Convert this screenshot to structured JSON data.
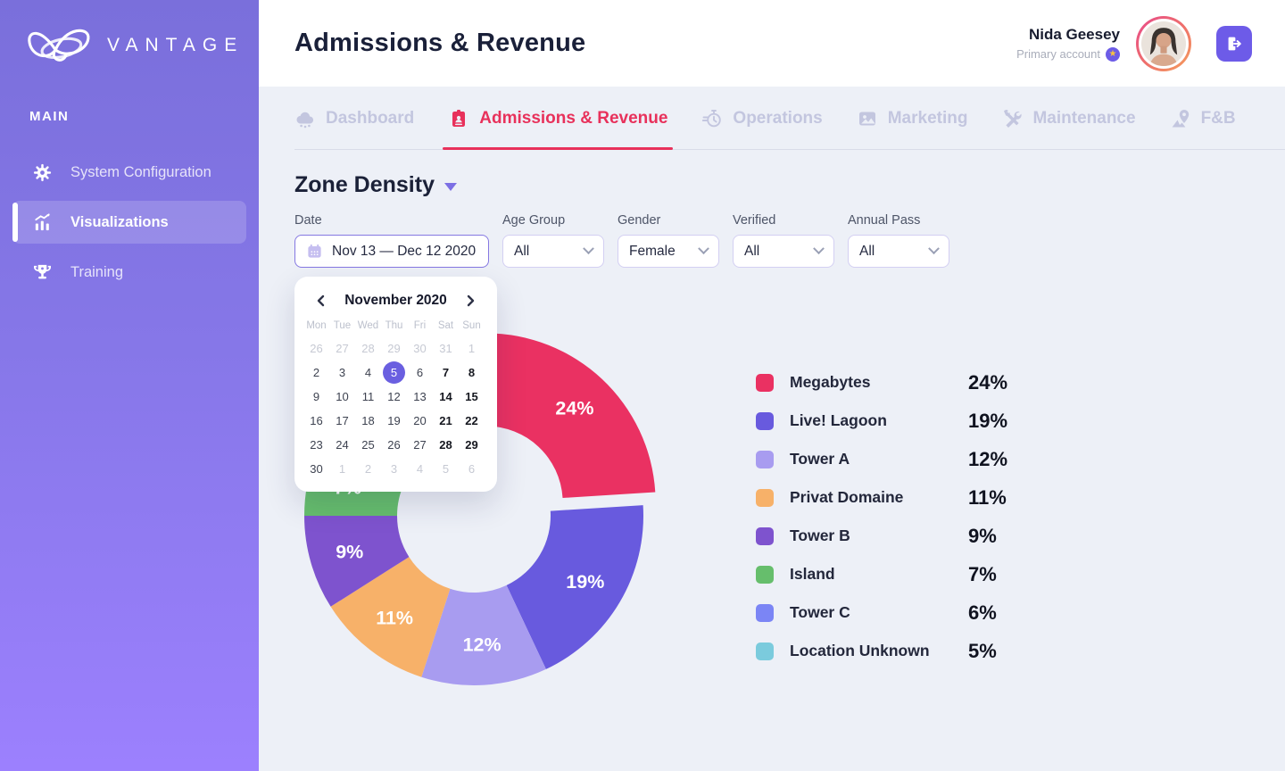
{
  "brand": {
    "name": "VANTAGE",
    "logo_icon": "vantage-logo"
  },
  "sidebar": {
    "section_label": "MAIN",
    "items": [
      {
        "label": "System Configuration",
        "icon": "gear",
        "active": false
      },
      {
        "label": "Visualizations",
        "icon": "bar-chart",
        "active": true
      },
      {
        "label": "Training",
        "icon": "trophy",
        "active": false
      }
    ]
  },
  "header": {
    "title": "Admissions & Revenue",
    "user": {
      "name": "Nida Geesey",
      "subtitle": "Primary account",
      "badge_icon": "star"
    },
    "logout_icon": "logout"
  },
  "tabs": [
    {
      "label": "Dashboard",
      "icon": "cloud",
      "active": false
    },
    {
      "label": "Admissions & Revenue",
      "icon": "ticket",
      "active": true
    },
    {
      "label": "Operations",
      "icon": "timer",
      "active": false
    },
    {
      "label": "Marketing",
      "icon": "image",
      "active": false
    },
    {
      "label": "Maintenance",
      "icon": "tools",
      "active": false
    },
    {
      "label": "F&B",
      "icon": "map-pin",
      "active": false
    }
  ],
  "section": {
    "title": "Zone Density",
    "caret_icon": "caret-down"
  },
  "filters": [
    {
      "label": "Date",
      "value": "Nov 13 — Dec 12 2020",
      "type": "date",
      "icon": "calendar"
    },
    {
      "label": "Age Group",
      "value": "All",
      "type": "select"
    },
    {
      "label": "Gender",
      "value": "Female",
      "type": "select"
    },
    {
      "label": "Verified",
      "value": "All",
      "type": "select"
    },
    {
      "label": "Annual Pass",
      "value": "All",
      "type": "select"
    }
  ],
  "calendar": {
    "month_label": "November 2020",
    "prev_icon": "chevron-left",
    "next_icon": "chevron-right",
    "selected_day": 5,
    "weekdays": [
      "Mon",
      "Tue",
      "Wed",
      "Thu",
      "Fri",
      "Sat",
      "Sun"
    ],
    "days": [
      {
        "n": 26,
        "k": "m"
      },
      {
        "n": 27,
        "k": "m"
      },
      {
        "n": 28,
        "k": "m"
      },
      {
        "n": 29,
        "k": "m"
      },
      {
        "n": 30,
        "k": "m"
      },
      {
        "n": 31,
        "k": "m"
      },
      {
        "n": 1,
        "k": "m"
      },
      {
        "n": 2,
        "k": "d"
      },
      {
        "n": 3,
        "k": "d"
      },
      {
        "n": 4,
        "k": "d"
      },
      {
        "n": 5,
        "k": "s"
      },
      {
        "n": 6,
        "k": "d"
      },
      {
        "n": 7,
        "k": "w"
      },
      {
        "n": 8,
        "k": "w"
      },
      {
        "n": 9,
        "k": "d"
      },
      {
        "n": 10,
        "k": "d"
      },
      {
        "n": 11,
        "k": "d"
      },
      {
        "n": 12,
        "k": "d"
      },
      {
        "n": 13,
        "k": "d"
      },
      {
        "n": 14,
        "k": "w"
      },
      {
        "n": 15,
        "k": "w"
      },
      {
        "n": 16,
        "k": "d"
      },
      {
        "n": 17,
        "k": "d"
      },
      {
        "n": 18,
        "k": "d"
      },
      {
        "n": 19,
        "k": "d"
      },
      {
        "n": 20,
        "k": "d"
      },
      {
        "n": 21,
        "k": "w"
      },
      {
        "n": 22,
        "k": "w"
      },
      {
        "n": 23,
        "k": "d"
      },
      {
        "n": 24,
        "k": "d"
      },
      {
        "n": 25,
        "k": "d"
      },
      {
        "n": 26,
        "k": "d"
      },
      {
        "n": 27,
        "k": "d"
      },
      {
        "n": 28,
        "k": "w"
      },
      {
        "n": 29,
        "k": "w"
      },
      {
        "n": 30,
        "k": "d"
      },
      {
        "n": 1,
        "k": "m"
      },
      {
        "n": 2,
        "k": "m"
      },
      {
        "n": 3,
        "k": "m"
      },
      {
        "n": 4,
        "k": "m"
      },
      {
        "n": 5,
        "k": "m"
      },
      {
        "n": 6,
        "k": "m"
      }
    ]
  },
  "chart_data": {
    "type": "pie",
    "title": "Zone Density",
    "donut": true,
    "labels": [
      "Megabytes",
      "Live! Lagoon",
      "Tower A",
      "Privat Domaine",
      "Tower B",
      "Island",
      "Tower C",
      "Location Unknown"
    ],
    "values": [
      24,
      19,
      12,
      11,
      9,
      7,
      6,
      5
    ],
    "unit": "%",
    "colors": [
      "#EA3162",
      "#685ADE",
      "#A89CF0",
      "#F7B169",
      "#7E53CE",
      "#66BE6C",
      "#7B85F5",
      "#7BCBDD"
    ],
    "exploded_index": 0,
    "start_angle_deg": 0,
    "direction": "clockwise",
    "legend_position": "right"
  }
}
